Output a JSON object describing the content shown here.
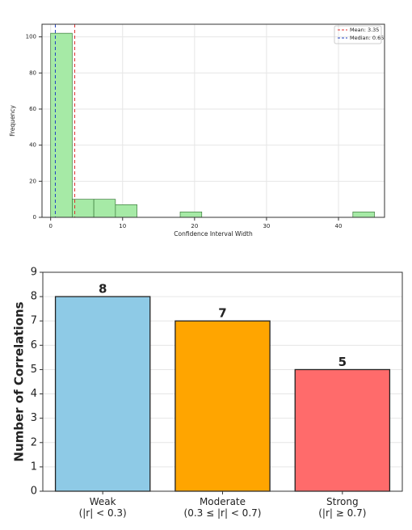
{
  "chart_data": [
    {
      "type": "histogram",
      "xlabel": "Confidence Interval Width",
      "ylabel": "Frequency",
      "bins": [
        0,
        3,
        6,
        9,
        12,
        15,
        18,
        21,
        24,
        27,
        30,
        33,
        36,
        39,
        42,
        45
      ],
      "values": [
        102,
        10,
        10,
        7,
        0,
        0,
        3,
        0,
        0,
        0,
        0,
        0,
        0,
        0,
        3
      ],
      "color": "#a6eaa6",
      "edgecolor": "#3a7a3a",
      "xlim": [
        -1.2,
        46.4
      ],
      "ylim": [
        0,
        107
      ],
      "xticks": [
        0,
        10,
        20,
        30,
        40
      ],
      "yticks": [
        0,
        20,
        40,
        60,
        80,
        100
      ],
      "grid": true,
      "legend": "upper right",
      "lines": [
        {
          "name": "Mean: 3.35",
          "value": 3.35,
          "color": "#e03030"
        },
        {
          "name": "Median: 0.65",
          "value": 0.65,
          "color": "#2040c0"
        }
      ]
    },
    {
      "type": "bar",
      "ylabel": "Number of Correlations",
      "categories": [
        "Weak\n(|r| < 0.3)",
        "Moderate\n(0.3 ≤ |r| < 0.7)",
        "Strong\n(|r| ≥ 0.7)"
      ],
      "values": [
        8,
        7,
        5
      ],
      "colors": [
        "#8ecae6",
        "#ffa500",
        "#ff6b6b"
      ],
      "ylim": [
        0,
        9
      ],
      "yticks": [
        0,
        1,
        2,
        3,
        4,
        5,
        6,
        7,
        8,
        9
      ],
      "grid": true
    }
  ]
}
